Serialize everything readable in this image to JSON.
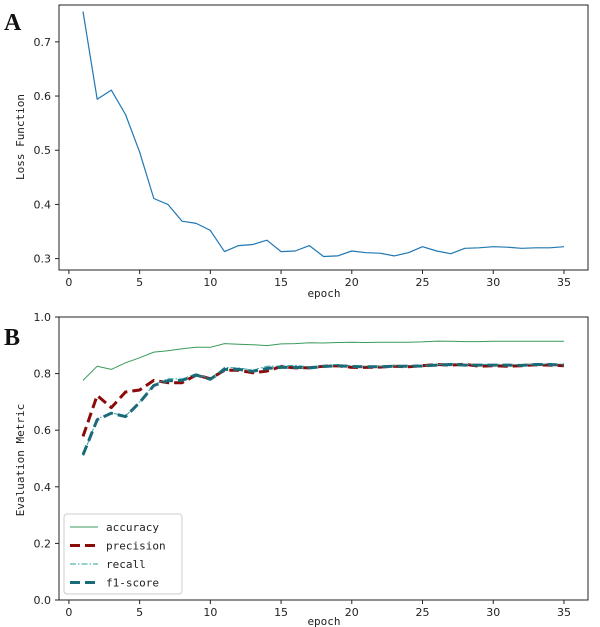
{
  "chart_data": [
    {
      "panel": "A",
      "type": "line",
      "xlabel": "epoch",
      "ylabel": "Loss Function",
      "xlim": [
        -0.7,
        36.7
      ],
      "ylim": [
        0.279,
        0.768
      ],
      "xticks": [
        0,
        5,
        10,
        15,
        20,
        25,
        30,
        35
      ],
      "yticks": [
        0.3,
        0.4,
        0.5,
        0.6,
        0.7
      ],
      "ytick_labels": [
        "0.3",
        "0.4",
        "0.5",
        "0.6",
        "0.7"
      ],
      "series": [
        {
          "name": "loss",
          "color": "#1f77b4",
          "x": [
            1,
            2,
            3,
            4,
            5,
            6,
            7,
            8,
            9,
            10,
            11,
            12,
            13,
            14,
            15,
            16,
            17,
            18,
            19,
            20,
            21,
            22,
            23,
            24,
            25,
            26,
            27,
            28,
            29,
            30,
            31,
            32,
            33,
            34,
            35
          ],
          "values": [
            0.756,
            0.594,
            0.611,
            0.566,
            0.497,
            0.411,
            0.4,
            0.369,
            0.365,
            0.352,
            0.313,
            0.324,
            0.326,
            0.334,
            0.313,
            0.314,
            0.324,
            0.304,
            0.305,
            0.314,
            0.311,
            0.31,
            0.305,
            0.311,
            0.322,
            0.314,
            0.309,
            0.319,
            0.32,
            0.322,
            0.321,
            0.319,
            0.32,
            0.32,
            0.322
          ]
        }
      ]
    },
    {
      "panel": "B",
      "type": "line",
      "xlabel": "epoch",
      "ylabel": "Evaluation Metric",
      "xlim": [
        -0.7,
        36.7
      ],
      "ylim": [
        0,
        1.0
      ],
      "xticks": [
        0,
        5,
        10,
        15,
        20,
        25,
        30,
        35
      ],
      "yticks": [
        0,
        0.2,
        0.4,
        0.6,
        0.8,
        1.0
      ],
      "ytick_labels": [
        "0.0",
        "0.2",
        "0.4",
        "0.6",
        "0.8",
        "1.0"
      ],
      "legend_position": "bottom-left",
      "series": [
        {
          "name": "accuracy",
          "color": "#3a9a5b",
          "style": "solid",
          "width": 1,
          "x": [
            1,
            2,
            3,
            4,
            5,
            6,
            7,
            8,
            9,
            10,
            11,
            12,
            13,
            14,
            15,
            16,
            17,
            18,
            19,
            20,
            21,
            22,
            23,
            24,
            25,
            26,
            27,
            28,
            29,
            30,
            31,
            32,
            33,
            34,
            35
          ],
          "values": [
            0.776,
            0.826,
            0.815,
            0.838,
            0.856,
            0.876,
            0.881,
            0.888,
            0.893,
            0.893,
            0.906,
            0.904,
            0.902,
            0.899,
            0.905,
            0.906,
            0.909,
            0.908,
            0.91,
            0.911,
            0.91,
            0.911,
            0.911,
            0.911,
            0.912,
            0.915,
            0.914,
            0.913,
            0.913,
            0.914,
            0.914,
            0.914,
            0.914,
            0.914,
            0.914
          ]
        },
        {
          "name": "precision",
          "color": "#8b0a0a",
          "style": "dashed-thick",
          "width": 3,
          "x": [
            1,
            2,
            3,
            4,
            5,
            6,
            7,
            8,
            9,
            10,
            11,
            12,
            13,
            14,
            15,
            16,
            17,
            18,
            19,
            20,
            21,
            22,
            23,
            24,
            25,
            26,
            27,
            28,
            29,
            30,
            31,
            32,
            33,
            34,
            35
          ],
          "values": [
            0.578,
            0.723,
            0.68,
            0.735,
            0.742,
            0.776,
            0.768,
            0.768,
            0.795,
            0.782,
            0.812,
            0.812,
            0.803,
            0.809,
            0.825,
            0.82,
            0.821,
            0.826,
            0.828,
            0.822,
            0.822,
            0.823,
            0.826,
            0.824,
            0.828,
            0.832,
            0.83,
            0.833,
            0.826,
            0.828,
            0.826,
            0.828,
            0.831,
            0.83,
            0.828
          ]
        },
        {
          "name": "recall",
          "color": "#29a3a3",
          "style": "dashdot-thin",
          "width": 1,
          "x": [
            1,
            2,
            3,
            4,
            5,
            6,
            7,
            8,
            9,
            10,
            11,
            12,
            13,
            14,
            15,
            16,
            17,
            18,
            19,
            20,
            21,
            22,
            23,
            24,
            25,
            26,
            27,
            28,
            29,
            30,
            31,
            32,
            33,
            34,
            35
          ],
          "values": [
            0.51,
            0.64,
            0.661,
            0.65,
            0.7,
            0.76,
            0.782,
            0.781,
            0.8,
            0.781,
            0.822,
            0.82,
            0.812,
            0.826,
            0.827,
            0.829,
            0.824,
            0.829,
            0.832,
            0.828,
            0.826,
            0.826,
            0.828,
            0.829,
            0.829,
            0.831,
            0.836,
            0.832,
            0.833,
            0.832,
            0.833,
            0.831,
            0.834,
            0.834,
            0.834
          ]
        },
        {
          "name": "f1-score",
          "color": "#1a6a78",
          "style": "dashed-thick",
          "width": 3,
          "x": [
            1,
            2,
            3,
            4,
            5,
            6,
            7,
            8,
            9,
            10,
            11,
            12,
            13,
            14,
            15,
            16,
            17,
            18,
            19,
            20,
            21,
            22,
            23,
            24,
            25,
            26,
            27,
            28,
            29,
            30,
            31,
            32,
            33,
            34,
            35
          ],
          "values": [
            0.513,
            0.637,
            0.66,
            0.648,
            0.698,
            0.758,
            0.775,
            0.776,
            0.795,
            0.78,
            0.815,
            0.815,
            0.808,
            0.818,
            0.822,
            0.822,
            0.82,
            0.825,
            0.828,
            0.825,
            0.824,
            0.824,
            0.826,
            0.826,
            0.827,
            0.83,
            0.832,
            0.83,
            0.83,
            0.83,
            0.83,
            0.829,
            0.832,
            0.832,
            0.83
          ]
        }
      ]
    }
  ]
}
